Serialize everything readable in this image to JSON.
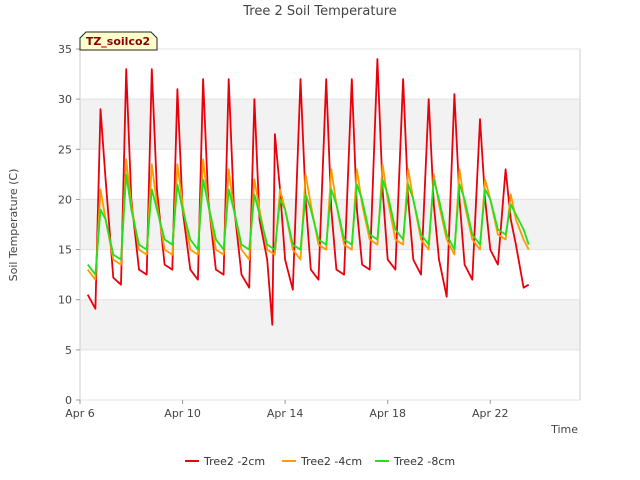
{
  "chart_data": {
    "type": "line",
    "title": "Tree 2 Soil Temperature",
    "xlabel": "Time",
    "ylabel": "Soil Temperature (C)",
    "tag": "TZ_soilco2",
    "xlim": [
      0,
      19.5
    ],
    "ylim": [
      0,
      35
    ],
    "yticks": [
      0,
      5,
      10,
      15,
      20,
      25,
      30,
      35
    ],
    "xticks": [
      {
        "day": 0,
        "label": "Apr 6"
      },
      {
        "day": 4,
        "label": "Apr 10"
      },
      {
        "day": 8,
        "label": "Apr 14"
      },
      {
        "day": 12,
        "label": "Apr 18"
      },
      {
        "day": 16,
        "label": "Apr 22"
      }
    ],
    "grid_bands": true,
    "legend_position": "bottom",
    "x_unit": "days since Apr 6",
    "series": [
      {
        "name": "Tree2 -2cm",
        "color": "#e8000b",
        "x": [
          0.3,
          0.6,
          0.8,
          1.0,
          1.3,
          1.6,
          1.8,
          2.0,
          2.3,
          2.6,
          2.8,
          3.0,
          3.3,
          3.6,
          3.8,
          4.0,
          4.3,
          4.6,
          4.8,
          5.0,
          5.3,
          5.6,
          5.8,
          6.0,
          6.3,
          6.6,
          6.8,
          7.0,
          7.3,
          7.5,
          7.6,
          7.8,
          8.0,
          8.3,
          8.6,
          8.8,
          9.0,
          9.3,
          9.6,
          9.8,
          10.0,
          10.3,
          10.6,
          10.8,
          11.0,
          11.3,
          11.6,
          11.8,
          12.0,
          12.3,
          12.6,
          12.8,
          13.0,
          13.3,
          13.6,
          13.8,
          14.0,
          14.3,
          14.6,
          14.8,
          15.0,
          15.3,
          15.6,
          15.8,
          16.0,
          16.3,
          16.6,
          16.8,
          17.0,
          17.3,
          17.5
        ],
        "y": [
          10.5,
          9.1,
          29.0,
          22.0,
          12.2,
          11.5,
          33.0,
          20.0,
          13.0,
          12.5,
          33.0,
          21.0,
          13.5,
          13.0,
          31.0,
          19.0,
          13.0,
          12.0,
          32.0,
          20.0,
          13.0,
          12.5,
          32.0,
          19.5,
          12.5,
          11.2,
          30.0,
          18.0,
          14.0,
          7.5,
          26.5,
          21.0,
          14.0,
          11.0,
          32.0,
          20.0,
          13.0,
          12.0,
          32.0,
          19.0,
          13.0,
          12.5,
          32.0,
          19.0,
          13.5,
          13.0,
          34.0,
          21.0,
          14.0,
          13.0,
          32.0,
          20.0,
          14.0,
          12.5,
          30.0,
          19.5,
          14.0,
          10.3,
          30.5,
          20.0,
          13.5,
          12.0,
          28.0,
          20.0,
          15.0,
          13.5,
          23.0,
          18.0,
          15.5,
          11.2,
          11.5
        ]
      },
      {
        "name": "Tree2 -4cm",
        "color": "#ff9b00",
        "x": [
          0.3,
          0.6,
          0.8,
          1.0,
          1.3,
          1.6,
          1.8,
          2.0,
          2.3,
          2.6,
          2.8,
          3.0,
          3.3,
          3.6,
          3.8,
          4.0,
          4.3,
          4.6,
          4.8,
          5.0,
          5.3,
          5.6,
          5.8,
          6.0,
          6.3,
          6.6,
          6.8,
          7.0,
          7.3,
          7.6,
          7.8,
          8.0,
          8.3,
          8.6,
          8.8,
          9.0,
          9.3,
          9.6,
          9.8,
          10.0,
          10.3,
          10.6,
          10.8,
          11.0,
          11.3,
          11.6,
          11.8,
          12.0,
          12.3,
          12.6,
          12.8,
          13.0,
          13.3,
          13.6,
          13.8,
          14.0,
          14.3,
          14.6,
          14.8,
          15.0,
          15.3,
          15.6,
          15.8,
          16.0,
          16.3,
          16.6,
          16.8,
          17.0,
          17.3,
          17.5
        ],
        "y": [
          13.0,
          12.0,
          21.0,
          18.0,
          14.0,
          13.5,
          24.0,
          19.5,
          15.0,
          14.5,
          23.5,
          19.5,
          15.0,
          14.5,
          23.5,
          19.5,
          15.0,
          14.5,
          24.0,
          19.5,
          15.0,
          14.5,
          23.0,
          19.0,
          15.0,
          14.0,
          22.0,
          19.0,
          15.0,
          14.5,
          21.0,
          19.0,
          15.0,
          14.0,
          22.5,
          19.5,
          15.5,
          15.0,
          23.0,
          19.5,
          15.5,
          15.0,
          23.0,
          19.5,
          16.0,
          15.5,
          23.5,
          20.0,
          16.0,
          15.5,
          23.0,
          20.0,
          16.0,
          15.0,
          22.5,
          19.5,
          16.0,
          14.5,
          23.0,
          19.5,
          16.0,
          15.0,
          22.0,
          20.0,
          16.5,
          16.0,
          20.5,
          18.0,
          16.0,
          15.0
        ]
      },
      {
        "name": "Tree2 -8cm",
        "color": "#22e01d",
        "x": [
          0.3,
          0.6,
          0.8,
          1.0,
          1.3,
          1.6,
          1.8,
          2.0,
          2.3,
          2.6,
          2.8,
          3.0,
          3.3,
          3.6,
          3.8,
          4.0,
          4.3,
          4.6,
          4.8,
          5.0,
          5.3,
          5.6,
          5.8,
          6.0,
          6.3,
          6.6,
          6.8,
          7.0,
          7.3,
          7.6,
          7.8,
          8.0,
          8.3,
          8.6,
          8.8,
          9.0,
          9.3,
          9.6,
          9.8,
          10.0,
          10.3,
          10.6,
          10.8,
          11.0,
          11.3,
          11.6,
          11.8,
          12.0,
          12.3,
          12.6,
          12.8,
          13.0,
          13.3,
          13.6,
          13.8,
          14.0,
          14.3,
          14.6,
          14.8,
          15.0,
          15.3,
          15.6,
          15.8,
          16.0,
          16.3,
          16.6,
          16.8,
          17.0,
          17.3,
          17.5
        ],
        "y": [
          13.5,
          12.5,
          19.0,
          18.0,
          14.5,
          14.0,
          22.5,
          19.0,
          15.5,
          15.0,
          21.0,
          19.0,
          16.0,
          15.5,
          21.5,
          19.0,
          16.0,
          15.0,
          22.0,
          19.5,
          16.0,
          15.0,
          21.0,
          19.0,
          15.5,
          15.0,
          20.5,
          18.5,
          15.5,
          15.0,
          20.0,
          19.0,
          15.5,
          15.0,
          20.5,
          19.0,
          16.0,
          15.5,
          21.0,
          19.5,
          16.0,
          15.5,
          21.5,
          20.0,
          16.5,
          16.0,
          22.0,
          20.5,
          17.0,
          16.0,
          21.5,
          20.0,
          16.5,
          15.5,
          22.0,
          20.0,
          16.5,
          15.0,
          21.5,
          20.0,
          16.5,
          15.5,
          21.0,
          20.0,
          17.0,
          16.5,
          19.5,
          18.5,
          17.0,
          15.5
        ]
      }
    ]
  }
}
